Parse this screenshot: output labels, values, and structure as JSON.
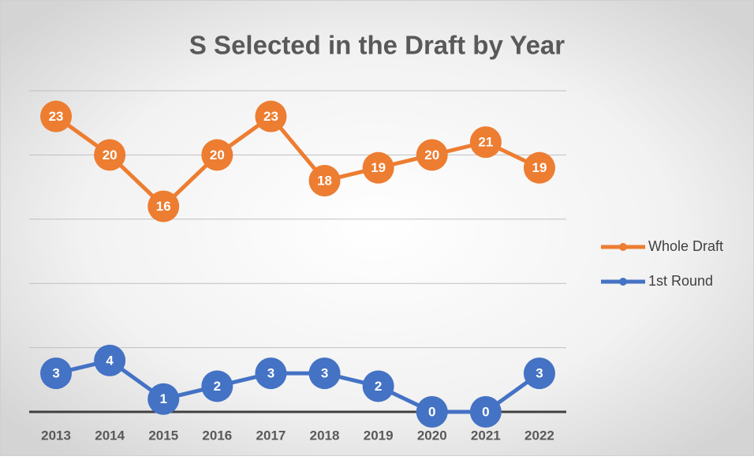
{
  "chart_data": {
    "type": "line",
    "title": "S Selected in the Draft by Year",
    "categories": [
      "2013",
      "2014",
      "2015",
      "2016",
      "2017",
      "2018",
      "2019",
      "2020",
      "2021",
      "2022"
    ],
    "series": [
      {
        "name": "Whole Draft",
        "color": "#ed7d31",
        "values": [
          23,
          20,
          16,
          20,
          23,
          18,
          19,
          20,
          21,
          19
        ]
      },
      {
        "name": "1st Round",
        "color": "#4472c4",
        "values": [
          3,
          4,
          1,
          2,
          3,
          3,
          2,
          0,
          0,
          3
        ]
      }
    ],
    "ylim": [
      0,
      25
    ],
    "yticks": [
      0,
      5,
      10,
      15,
      20,
      25
    ],
    "grid": true,
    "legend": "right"
  }
}
